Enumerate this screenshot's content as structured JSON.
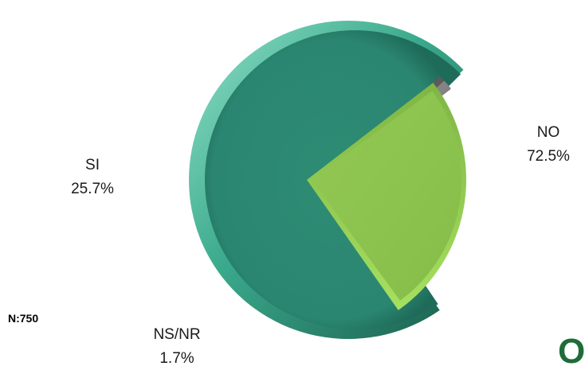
{
  "chart_data": {
    "type": "pie",
    "slices": [
      {
        "label": "NO",
        "value": 72.5,
        "value_label": "72.5%",
        "color": "#2e8b74",
        "exploded": false
      },
      {
        "label": "SI",
        "value": 25.7,
        "value_label": "25.7%",
        "color": "#8bc34a",
        "exploded": true
      },
      {
        "label": "NS/NR",
        "value": 1.7,
        "value_label": "1.7%",
        "color": "#8a8a8a",
        "exploded": true
      }
    ],
    "annotation": "N:750",
    "legend": "none"
  },
  "corner_glyph": "O"
}
